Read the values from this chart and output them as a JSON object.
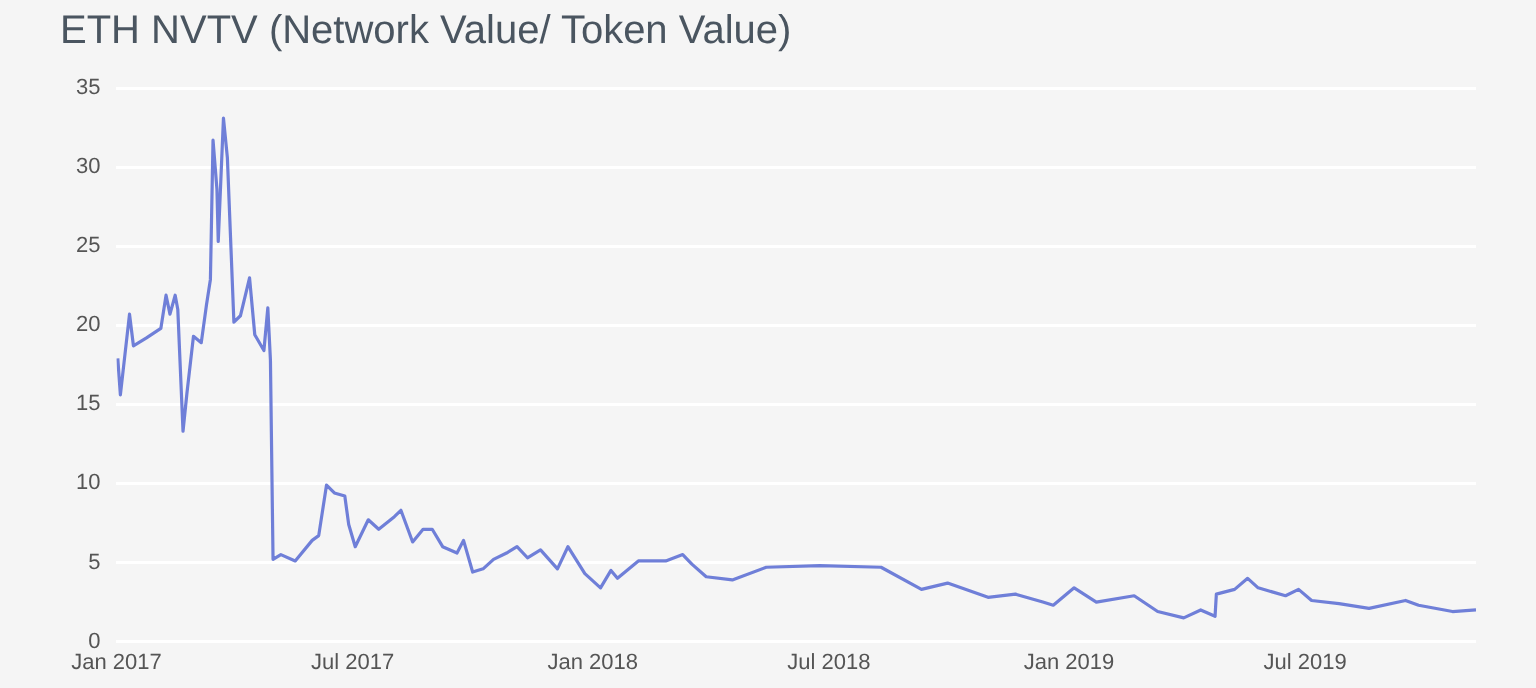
{
  "chart_data": {
    "type": "line",
    "title": "ETH NVTV (Network Value/ Token Value)",
    "x": [
      "2017-01-02",
      "2017-01-04",
      "2017-01-11",
      "2017-01-14",
      "2017-01-24",
      "2017-02-04",
      "2017-02-08",
      "2017-02-11",
      "2017-02-15",
      "2017-02-17",
      "2017-02-21",
      "2017-02-24",
      "2017-03-01",
      "2017-03-07",
      "2017-03-11",
      "2017-03-14",
      "2017-03-16",
      "2017-03-19",
      "2017-03-20",
      "2017-03-24",
      "2017-03-27",
      "2017-04-01",
      "2017-04-06",
      "2017-04-13",
      "2017-04-17",
      "2017-04-24",
      "2017-04-27",
      "2017-04-29",
      "2017-05-01",
      "2017-05-07",
      "2017-05-18",
      "2017-05-31",
      "2017-06-05",
      "2017-06-11",
      "2017-06-17",
      "2017-06-25",
      "2017-06-28",
      "2017-07-03",
      "2017-07-13",
      "2017-07-21",
      "2017-08-02",
      "2017-08-07",
      "2017-08-16",
      "2017-08-24",
      "2017-08-31",
      "2017-09-08",
      "2017-09-19",
      "2017-09-24",
      "2017-10-01",
      "2017-10-09",
      "2017-10-17",
      "2017-10-27",
      "2017-11-04",
      "2017-11-12",
      "2017-11-22",
      "2017-12-05",
      "2017-12-13",
      "2017-12-26",
      "2018-01-07",
      "2018-01-15",
      "2018-01-20",
      "2018-02-05",
      "2018-02-26",
      "2018-03-11",
      "2018-03-18",
      "2018-03-29",
      "2018-04-18",
      "2018-05-14",
      "2018-06-24",
      "2018-08-10",
      "2018-09-10",
      "2018-09-30",
      "2018-10-31",
      "2018-11-21",
      "2018-12-12",
      "2018-12-20",
      "2019-01-05",
      "2019-01-22",
      "2019-02-20",
      "2019-03-10",
      "2019-03-30",
      "2019-04-12",
      "2019-04-23",
      "2019-04-24",
      "2019-05-08",
      "2019-05-18",
      "2019-05-26",
      "2019-06-16",
      "2019-06-26",
      "2019-07-06",
      "2019-07-27",
      "2019-08-19",
      "2019-09-16",
      "2019-09-26",
      "2019-10-22",
      "2019-11-09"
    ],
    "series": [
      {
        "color": "#6f7fd8",
        "values": [
          17.9,
          15.6,
          20.7,
          18.7,
          19.2,
          19.8,
          21.9,
          20.7,
          21.9,
          21.0,
          13.3,
          15.7,
          19.3,
          18.9,
          21.3,
          22.9,
          31.7,
          28.6,
          25.3,
          33.1,
          30.6,
          20.2,
          20.6,
          23.0,
          19.4,
          18.4,
          21.1,
          17.8,
          5.2,
          5.5,
          5.1,
          6.4,
          6.7,
          9.9,
          9.4,
          9.2,
          7.4,
          6.0,
          7.7,
          7.1,
          7.9,
          8.3,
          6.3,
          7.1,
          7.1,
          6.0,
          5.6,
          6.4,
          4.4,
          4.6,
          5.2,
          5.6,
          6.0,
          5.3,
          5.8,
          4.6,
          6.0,
          4.3,
          3.4,
          4.5,
          4.0,
          5.1,
          5.1,
          5.5,
          4.9,
          4.1,
          3.9,
          4.7,
          4.8,
          4.7,
          3.3,
          3.7,
          2.8,
          3.0,
          2.5,
          2.3,
          3.4,
          2.5,
          2.9,
          1.9,
          1.5,
          2.0,
          1.6,
          3.0,
          3.3,
          4.0,
          3.4,
          2.9,
          3.3,
          2.6,
          2.4,
          2.1,
          2.6,
          2.3,
          1.9,
          2.0
        ]
      }
    ],
    "xlim": [
      "2017-01-01",
      "2019-11-09"
    ],
    "xticks": [
      {
        "value": "2017-01-01",
        "label": "Jan 2017"
      },
      {
        "value": "2017-07-01",
        "label": "Jul 2017"
      },
      {
        "value": "2018-01-01",
        "label": "Jan 2018"
      },
      {
        "value": "2018-07-01",
        "label": "Jul 2018"
      },
      {
        "value": "2019-01-01",
        "label": "Jan 2019"
      },
      {
        "value": "2019-07-01",
        "label": "Jul 2019"
      }
    ],
    "ylim": [
      0,
      35
    ],
    "yticks": [
      0,
      5,
      10,
      15,
      20,
      25,
      30,
      35
    ],
    "grid": "y",
    "marker": "none",
    "line_style": "solid"
  }
}
